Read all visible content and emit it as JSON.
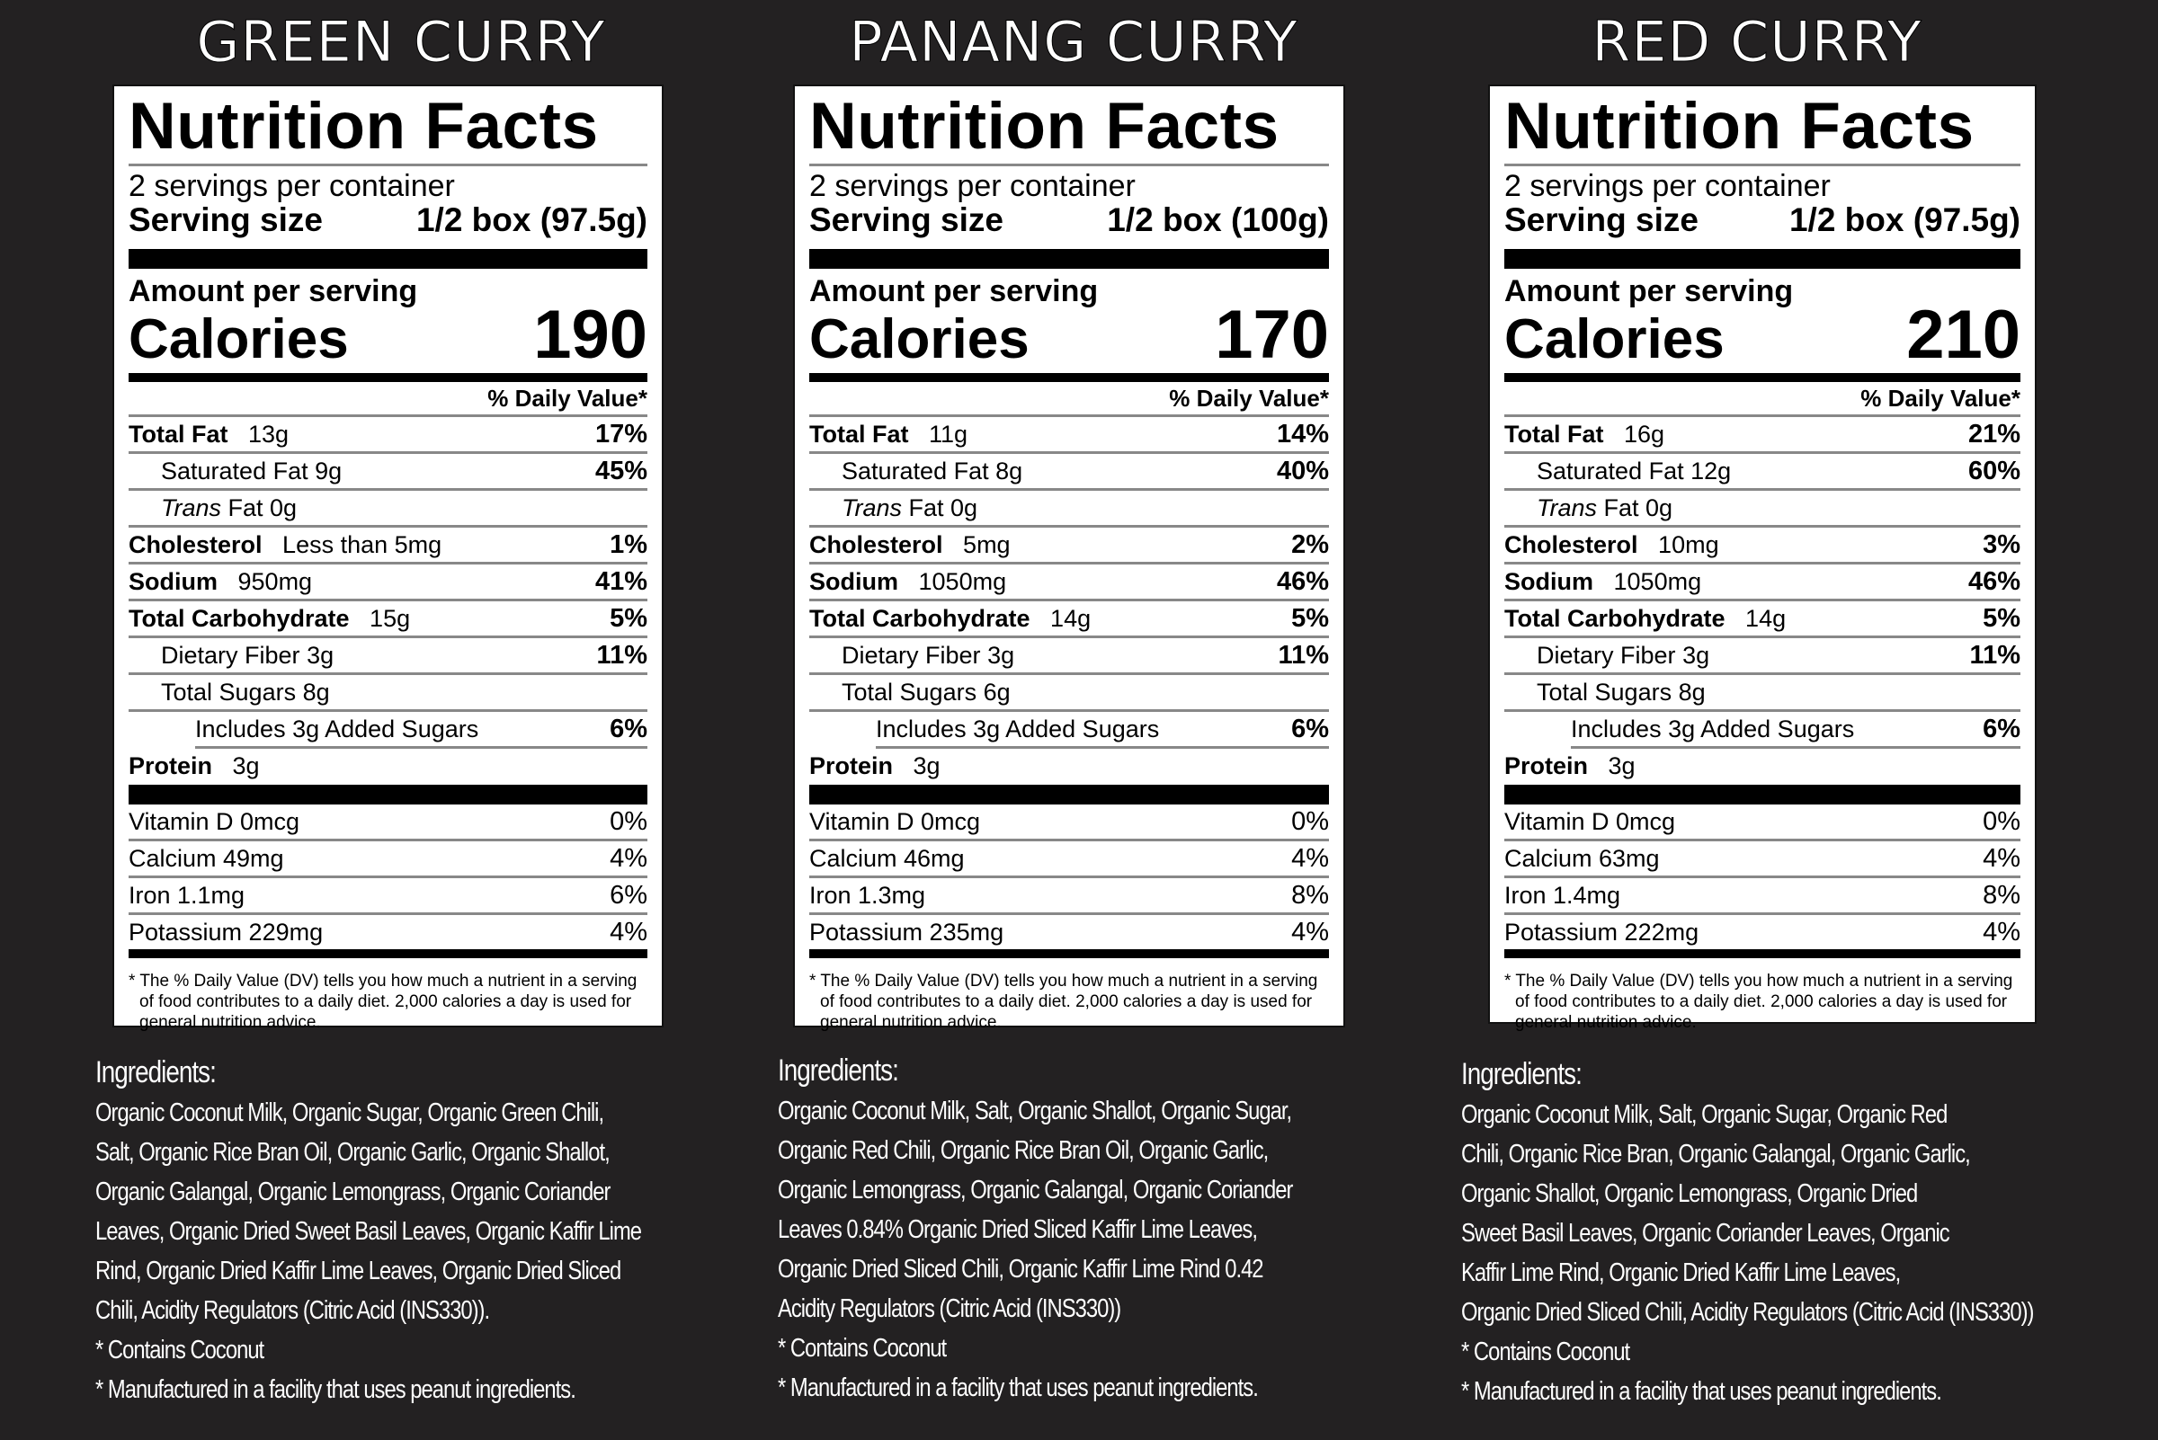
{
  "panels": [
    {
      "title": "GREEN CURRY",
      "label": {
        "heading": "Nutrition Facts",
        "servings": "2 servings per container",
        "serving_size_label": "Serving size",
        "serving_size_value": "1/2 box (97.5g)",
        "amount_per_serving": "Amount per serving",
        "calories_label": "Calories",
        "calories_value": "190",
        "dv_header": "% Daily Value*",
        "nutrients": [
          {
            "name": "Total Fat",
            "amount": "13g",
            "dv": "17%"
          },
          {
            "name": "Saturated Fat",
            "amount": "9g",
            "dv": "45%"
          },
          {
            "name": "Trans",
            "amount": "Fat 0g",
            "dv": ""
          },
          {
            "name": "Cholesterol",
            "amount": "Less than 5mg",
            "dv": "1%"
          },
          {
            "name": "Sodium",
            "amount": "950mg",
            "dv": "41%"
          },
          {
            "name": "Total Carbohydrate",
            "amount": "15g",
            "dv": "5%"
          },
          {
            "name": "Dietary Fiber",
            "amount": "3g",
            "dv": "11%"
          },
          {
            "name": "Total Sugars",
            "amount": "8g",
            "dv": ""
          },
          {
            "name": "Includes 3g Added Sugars",
            "amount": "",
            "dv": "6%"
          },
          {
            "name": "Protein",
            "amount": "3g",
            "dv": ""
          }
        ],
        "vitamins": [
          {
            "name": "Vitamin D 0mcg",
            "dv": "0%"
          },
          {
            "name": "Calcium 49mg",
            "dv": "4%"
          },
          {
            "name": "Iron 1.1mg",
            "dv": "6%"
          },
          {
            "name": "Potassium 229mg",
            "dv": "4%"
          }
        ],
        "footnote": "* The % Daily Value (DV) tells you how much a nutrient in a serving of food contributes to a daily diet. 2,000 calories a day is used for general nutrition advice."
      },
      "ingredients": {
        "heading": "Ingredients:",
        "lines": [
          "Organic Coconut Milk, Organic Sugar, Organic Green Chili,",
          "Salt, Organic Rice Bran Oil, Organic Garlic, Organic Shallot,",
          "Organic Galangal, Organic Lemongrass, Organic Coriander",
          "Leaves, Organic Dried Sweet Basil Leaves, Organic Kaffir Lime",
          "Rind, Organic Dried Kaffir Lime Leaves, Organic Dried Sliced",
          "Chili, Acidity Regulators (Citric Acid (INS330))."
        ],
        "notes": [
          "* Contains Coconut",
          "* Manufactured in a facility that uses peanut ingredients."
        ]
      }
    },
    {
      "title": "PANANG CURRY",
      "label": {
        "heading": "Nutrition Facts",
        "servings": "2 servings per container",
        "serving_size_label": "Serving size",
        "serving_size_value": "1/2 box (100g)",
        "amount_per_serving": "Amount per serving",
        "calories_label": "Calories",
        "calories_value": "170",
        "dv_header": "% Daily Value*",
        "nutrients": [
          {
            "name": "Total Fat",
            "amount": "11g",
            "dv": "14%"
          },
          {
            "name": "Saturated Fat",
            "amount": "8g",
            "dv": "40%"
          },
          {
            "name": "Trans",
            "amount": "Fat 0g",
            "dv": ""
          },
          {
            "name": "Cholesterol",
            "amount": "5mg",
            "dv": "2%"
          },
          {
            "name": "Sodium",
            "amount": "1050mg",
            "dv": "46%"
          },
          {
            "name": "Total Carbohydrate",
            "amount": "14g",
            "dv": "5%"
          },
          {
            "name": "Dietary Fiber",
            "amount": "3g",
            "dv": "11%"
          },
          {
            "name": "Total Sugars",
            "amount": "6g",
            "dv": ""
          },
          {
            "name": "Includes 3g Added Sugars",
            "amount": "",
            "dv": "6%"
          },
          {
            "name": "Protein",
            "amount": "3g",
            "dv": ""
          }
        ],
        "vitamins": [
          {
            "name": "Vitamin D 0mcg",
            "dv": "0%"
          },
          {
            "name": "Calcium 46mg",
            "dv": "4%"
          },
          {
            "name": "Iron 1.3mg",
            "dv": "8%"
          },
          {
            "name": "Potassium 235mg",
            "dv": "4%"
          }
        ],
        "footnote": "* The % Daily Value (DV) tells you how much a nutrient in a serving of food contributes to a daily diet. 2,000 calories a day is used for general nutrition advice."
      },
      "ingredients": {
        "heading": "Ingredients:",
        "lines": [
          "Organic Coconut Milk, Salt, Organic Shallot, Organic Sugar,",
          "Organic Red Chili, Organic Rice Bran Oil, Organic Garlic,",
          "Organic Lemongrass, Organic Galangal, Organic Coriander",
          "Leaves 0.84% Organic Dried Sliced Kaffir Lime Leaves,",
          "Organic Dried Sliced Chili, Organic Kaffir Lime Rind 0.42",
          "Acidity Regulators (Citric Acid (INS330))"
        ],
        "notes": [
          "* Contains Coconut",
          "* Manufactured in a facility that uses peanut ingredients."
        ]
      }
    },
    {
      "title": "RED CURRY",
      "label": {
        "heading": "Nutrition Facts",
        "servings": "2 servings per container",
        "serving_size_label": "Serving size",
        "serving_size_value": "1/2 box (97.5g)",
        "amount_per_serving": "Amount per serving",
        "calories_label": "Calories",
        "calories_value": "210",
        "dv_header": "% Daily Value*",
        "nutrients": [
          {
            "name": "Total Fat",
            "amount": "16g",
            "dv": "21%"
          },
          {
            "name": "Saturated Fat",
            "amount": "12g",
            "dv": "60%"
          },
          {
            "name": "Trans",
            "amount": "Fat 0g",
            "dv": ""
          },
          {
            "name": "Cholesterol",
            "amount": "10mg",
            "dv": "3%"
          },
          {
            "name": "Sodium",
            "amount": "1050mg",
            "dv": "46%"
          },
          {
            "name": "Total Carbohydrate",
            "amount": "14g",
            "dv": "5%"
          },
          {
            "name": "Dietary Fiber",
            "amount": "3g",
            "dv": "11%"
          },
          {
            "name": "Total Sugars",
            "amount": "8g",
            "dv": ""
          },
          {
            "name": "Includes 3g Added Sugars",
            "amount": "",
            "dv": "6%"
          },
          {
            "name": "Protein",
            "amount": "3g",
            "dv": ""
          }
        ],
        "vitamins": [
          {
            "name": "Vitamin D 0mcg",
            "dv": "0%"
          },
          {
            "name": "Calcium 63mg",
            "dv": "4%"
          },
          {
            "name": "Iron 1.4mg",
            "dv": "8%"
          },
          {
            "name": "Potassium 222mg",
            "dv": "4%"
          }
        ],
        "footnote": "* The % Daily Value (DV) tells you how much a nutrient in a serving of food contributes to a daily diet. 2,000 calories a day is used for general nutrition advice."
      },
      "ingredients": {
        "heading": "Ingredients:",
        "lines": [
          "Organic Coconut Milk, Salt, Organic Sugar, Organic Red",
          "Chili, Organic Rice Bran, Organic Galangal, Organic Garlic,",
          "Organic Shallot, Organic Lemongrass, Organic Dried",
          "Sweet Basil Leaves, Organic Coriander Leaves, Organic",
          "Kaffir Lime Rind, Organic Dried Kaffir Lime Leaves,",
          "Organic Dried Sliced Chili, Acidity Regulators (Citric Acid (INS330))"
        ],
        "notes": [
          "* Contains Coconut",
          "* Manufactured in a facility that uses peanut ingredients."
        ]
      }
    }
  ]
}
